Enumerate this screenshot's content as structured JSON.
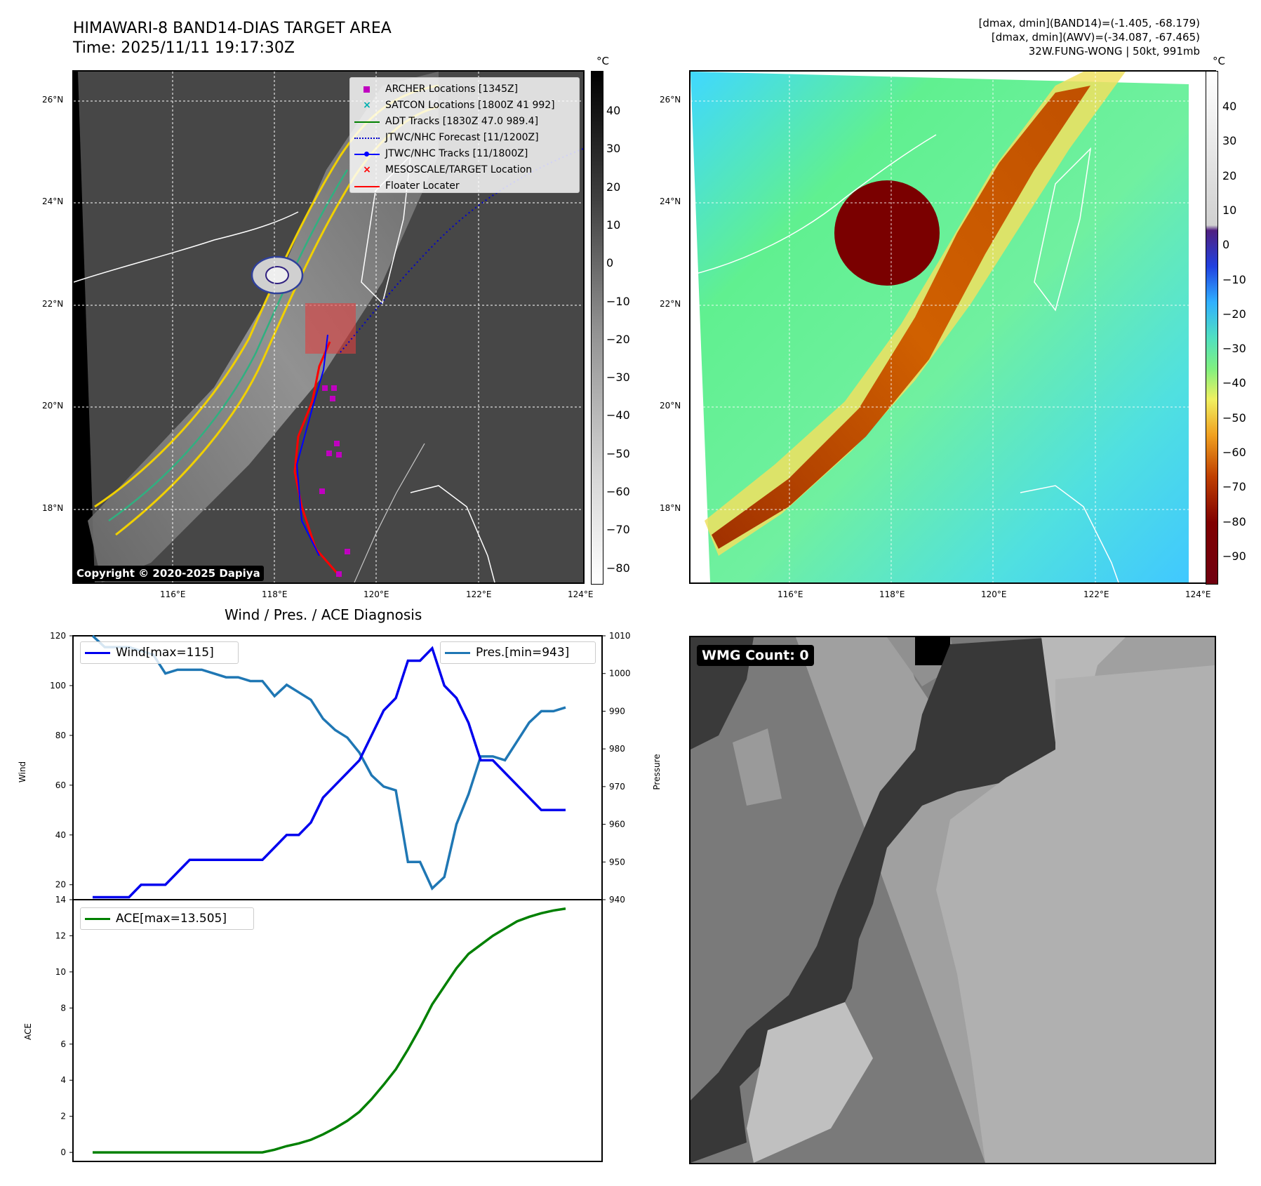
{
  "header": {
    "title_line1": "HIMAWARI-8 BAND14-DIAS TARGET AREA",
    "title_line2": "Time: 2025/11/11 19:17:30Z",
    "right_line1": "[dmax, dmin](BAND14)=(-1.405, -68.179)",
    "right_line2": "[dmax, dmin](AWV)=(-34.087, -67.465)",
    "right_line3": "32W.FUNG-WONG | 50kt, 991mb"
  },
  "map": {
    "lat_labels": [
      "26°N",
      "24°N",
      "22°N",
      "20°N",
      "18°N"
    ],
    "lon_labels": [
      "116°E",
      "118°E",
      "120°E",
      "122°E",
      "124°E"
    ],
    "copyright": "Copyright © 2020-2025 Dapiya",
    "legend": [
      {
        "label": "ARCHER Locations [1345Z]",
        "color": "#c000c0",
        "icon": "square-marker-icon"
      },
      {
        "label": "SATCON Locations [1800Z 41 992]",
        "color": "#00b0b0",
        "icon": "x-marker-icon"
      },
      {
        "label": "ADT Tracks [1830Z 47.0 989.4]",
        "color": "#008000",
        "icon": "line-icon"
      },
      {
        "label": "JTWC/NHC Forecast [11/1200Z]",
        "color": "#0000cc",
        "icon": "dotted-line-icon"
      },
      {
        "label": "JTWC/NHC Tracks [11/1800Z]",
        "color": "#0000ff",
        "icon": "line-dot-icon"
      },
      {
        "label": "MESOSCALE/TARGET Location",
        "color": "#ff0000",
        "icon": "x-marker-icon"
      },
      {
        "label": "Floater Locater",
        "color": "#ff0000",
        "icon": "line-icon"
      }
    ]
  },
  "colorbar_gray": {
    "unit": "°C",
    "ticks": [
      "40",
      "30",
      "20",
      "10",
      "0",
      "−10",
      "−20",
      "−30",
      "−40",
      "−50",
      "−60",
      "−70",
      "−80"
    ]
  },
  "colorbar_color": {
    "unit": "°C",
    "ticks": [
      "40",
      "30",
      "20",
      "10",
      "0",
      "−10",
      "−20",
      "−30",
      "−40",
      "−50",
      "−60",
      "−70",
      "−80",
      "−90"
    ]
  },
  "wmg": {
    "label": "WMG Count: 0"
  },
  "chart_data": [
    {
      "type": "line",
      "title": "Wind / Pres. / ACE Diagnosis",
      "ylabel": "Wind",
      "ylabel_right": "Pressure",
      "ylim": [
        14,
        120
      ],
      "ylim_right": [
        940,
        1010
      ],
      "yticks": [
        20,
        40,
        60,
        80,
        100,
        120
      ],
      "yticks_right": [
        940,
        950,
        960,
        970,
        980,
        990,
        1000,
        1010
      ],
      "x": [
        0,
        1,
        2,
        3,
        4,
        5,
        6,
        7,
        8,
        9,
        10,
        11,
        12,
        13,
        14,
        15,
        16,
        17,
        18,
        19,
        20,
        21,
        22,
        23,
        24,
        25,
        26,
        27,
        28,
        29,
        30,
        31,
        32,
        33,
        34,
        35,
        36,
        37,
        38,
        39
      ],
      "series": [
        {
          "name": "Wind[max=115]",
          "color": "#0000ee",
          "values": [
            15,
            15,
            15,
            15,
            20,
            20,
            20,
            25,
            30,
            30,
            30,
            30,
            30,
            30,
            30,
            35,
            40,
            40,
            45,
            55,
            60,
            65,
            70,
            80,
            90,
            95,
            110,
            110,
            115,
            100,
            95,
            85,
            70,
            70,
            65,
            60,
            55,
            50,
            50,
            50
          ]
        },
        {
          "name": "Pres.[min=943]",
          "color": "#1f77b4",
          "axis": "right",
          "values": [
            1010,
            1007,
            1007,
            1007,
            1006,
            1005,
            1000,
            1001,
            1001,
            1001,
            1000,
            999,
            999,
            998,
            998,
            994,
            997,
            995,
            993,
            988,
            985,
            983,
            979,
            973,
            970,
            969,
            950,
            950,
            943,
            946,
            960,
            968,
            978,
            978,
            977,
            982,
            987,
            990,
            990,
            991
          ]
        }
      ]
    },
    {
      "type": "line",
      "ylabel": "ACE",
      "ylim": [
        -0.5,
        14
      ],
      "yticks": [
        0,
        2,
        4,
        6,
        8,
        10,
        12,
        14
      ],
      "x": [
        0,
        1,
        2,
        3,
        4,
        5,
        6,
        7,
        8,
        9,
        10,
        11,
        12,
        13,
        14,
        15,
        16,
        17,
        18,
        19,
        20,
        21,
        22,
        23,
        24,
        25,
        26,
        27,
        28,
        29,
        30,
        31,
        32,
        33,
        34,
        35,
        36,
        37,
        38,
        39
      ],
      "series": [
        {
          "name": "ACE[max=13.505]",
          "color": "#008000",
          "values": [
            0,
            0,
            0,
            0,
            0,
            0,
            0,
            0,
            0,
            0,
            0,
            0,
            0,
            0,
            0,
            0.15,
            0.35,
            0.5,
            0.7,
            1.0,
            1.35,
            1.75,
            2.25,
            2.95,
            3.75,
            4.6,
            5.7,
            6.9,
            8.2,
            9.2,
            10.2,
            11.0,
            11.5,
            12.0,
            12.4,
            12.8,
            13.05,
            13.25,
            13.4,
            13.505
          ]
        }
      ]
    }
  ]
}
